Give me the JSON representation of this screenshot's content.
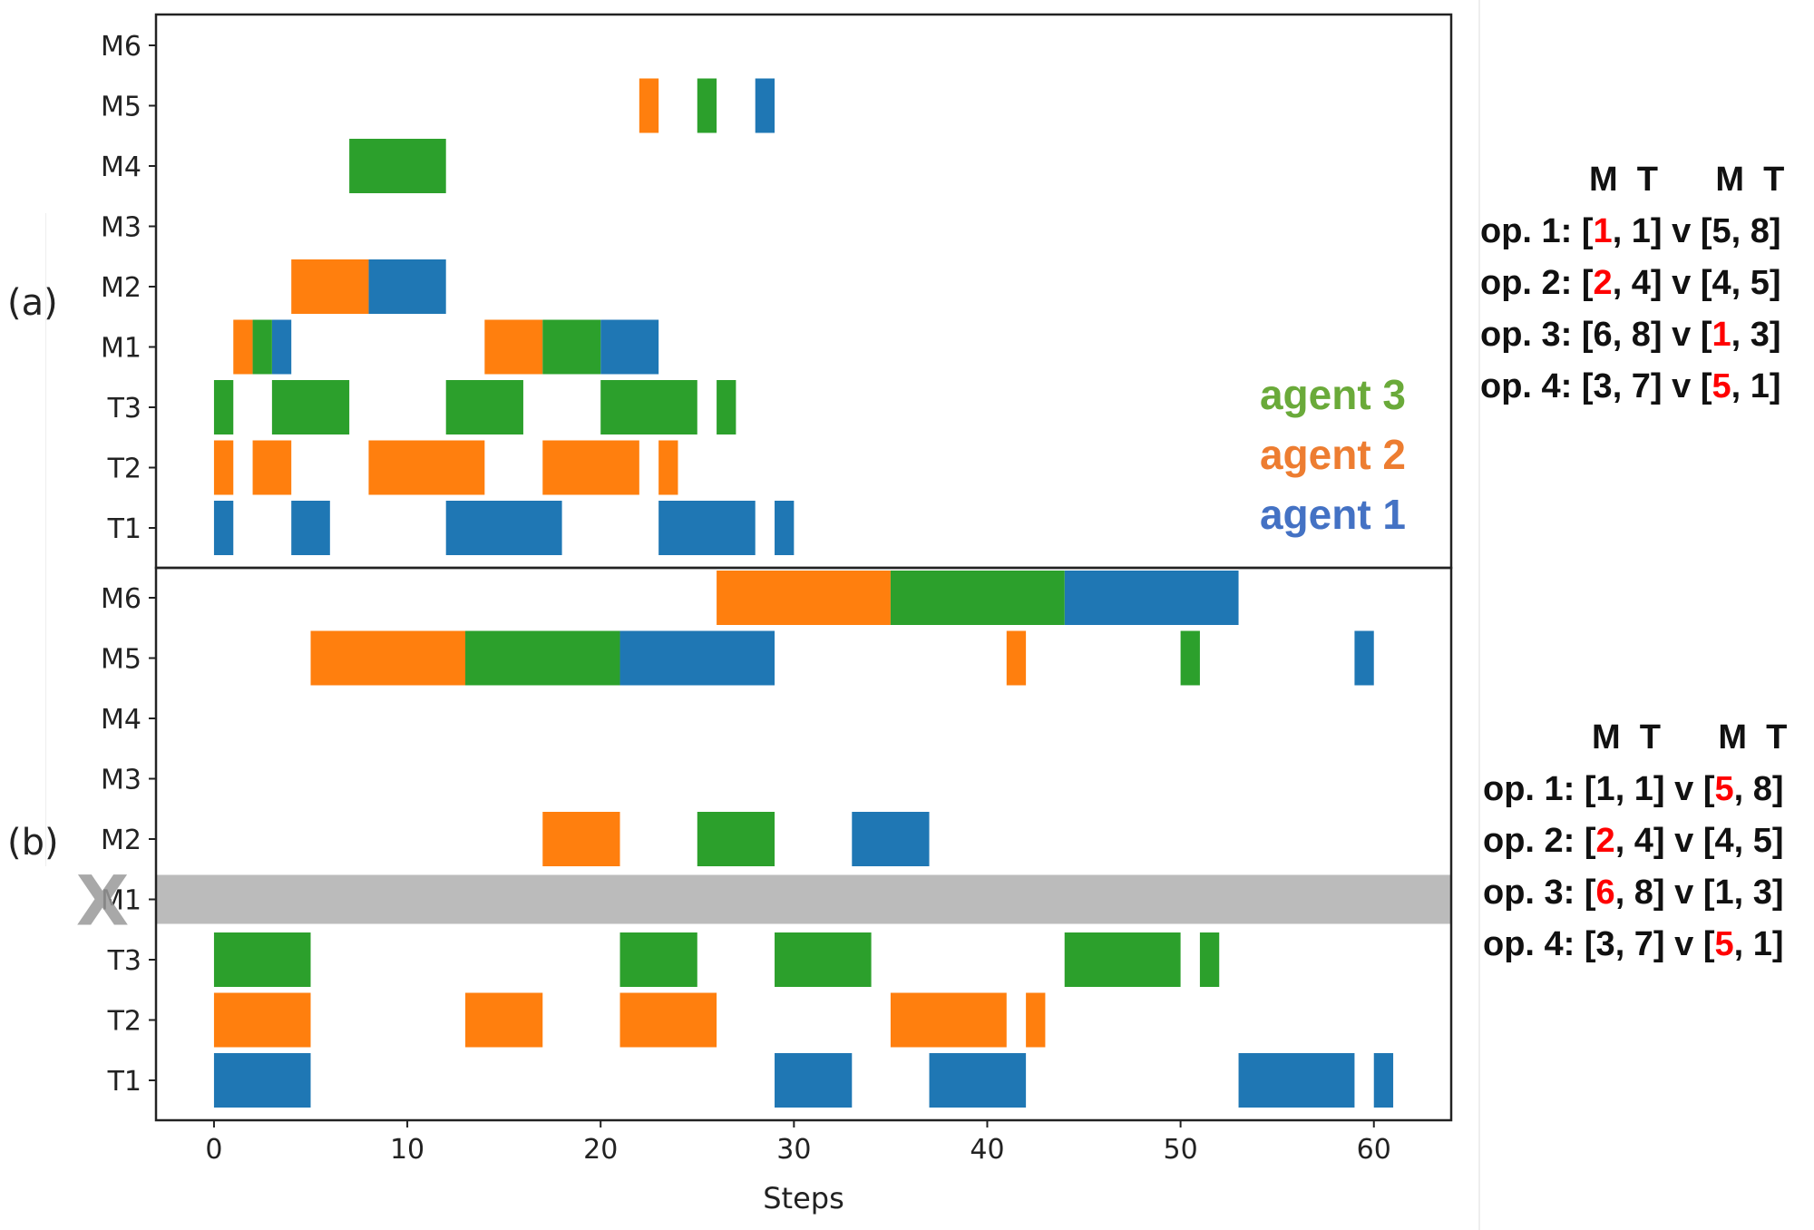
{
  "chart_data": [
    {
      "panel_label": "(a)",
      "type": "gantt",
      "categories": [
        "T1",
        "T2",
        "T3",
        "M1",
        "M2",
        "M3",
        "M4",
        "M5",
        "M6"
      ],
      "series": [
        {
          "name": "agent 1",
          "color": "#1f77b4",
          "bars": [
            {
              "row": "T1",
              "start": 0,
              "end": 1
            },
            {
              "row": "T1",
              "start": 4,
              "end": 6
            },
            {
              "row": "T1",
              "start": 12,
              "end": 18
            },
            {
              "row": "T1",
              "start": 23,
              "end": 28
            },
            {
              "row": "T1",
              "start": 29,
              "end": 30
            },
            {
              "row": "M1",
              "start": 3,
              "end": 4
            },
            {
              "row": "M1",
              "start": 20,
              "end": 23
            },
            {
              "row": "M2",
              "start": 8,
              "end": 12
            },
            {
              "row": "M5",
              "start": 28,
              "end": 29
            }
          ]
        },
        {
          "name": "agent 2",
          "color": "#ff7f0e",
          "bars": [
            {
              "row": "T2",
              "start": 0,
              "end": 1
            },
            {
              "row": "T2",
              "start": 2,
              "end": 4
            },
            {
              "row": "T2",
              "start": 8,
              "end": 14
            },
            {
              "row": "T2",
              "start": 17,
              "end": 22
            },
            {
              "row": "T2",
              "start": 23,
              "end": 24
            },
            {
              "row": "M1",
              "start": 1,
              "end": 2
            },
            {
              "row": "M1",
              "start": 14,
              "end": 17
            },
            {
              "row": "M2",
              "start": 4,
              "end": 8
            },
            {
              "row": "M5",
              "start": 22,
              "end": 23
            }
          ]
        },
        {
          "name": "agent 3",
          "color": "#2ca02c",
          "bars": [
            {
              "row": "T3",
              "start": 0,
              "end": 1
            },
            {
              "row": "T3",
              "start": 3,
              "end": 7
            },
            {
              "row": "T3",
              "start": 12,
              "end": 16
            },
            {
              "row": "T3",
              "start": 20,
              "end": 25
            },
            {
              "row": "T3",
              "start": 26,
              "end": 27
            },
            {
              "row": "M1",
              "start": 2,
              "end": 3
            },
            {
              "row": "M1",
              "start": 17,
              "end": 20
            },
            {
              "row": "M4",
              "start": 7,
              "end": 12
            },
            {
              "row": "M5",
              "start": 25,
              "end": 26
            }
          ]
        }
      ],
      "legend": [
        {
          "label": "agent 3",
          "color": "#6aaa3a"
        },
        {
          "label": "agent 2",
          "color": "#ed7d31"
        },
        {
          "label": "agent 1",
          "color": "#4472c4"
        }
      ],
      "legend_position": "bottom-right",
      "xlim": [
        -3,
        64
      ]
    },
    {
      "panel_label": "(b)",
      "type": "gantt",
      "categories": [
        "T1",
        "T2",
        "T3",
        "M1",
        "M2",
        "M3",
        "M4",
        "M5",
        "M6"
      ],
      "unavailable_row": "M1",
      "unavailable_marker": "X",
      "series": [
        {
          "name": "agent 1",
          "color": "#1f77b4",
          "bars": [
            {
              "row": "T1",
              "start": 0,
              "end": 5
            },
            {
              "row": "T1",
              "start": 29,
              "end": 33
            },
            {
              "row": "T1",
              "start": 37,
              "end": 42
            },
            {
              "row": "T1",
              "start": 53,
              "end": 59
            },
            {
              "row": "T1",
              "start": 60,
              "end": 61
            },
            {
              "row": "M2",
              "start": 33,
              "end": 37
            },
            {
              "row": "M5",
              "start": 21,
              "end": 29
            },
            {
              "row": "M5",
              "start": 59,
              "end": 60
            },
            {
              "row": "M6",
              "start": 44,
              "end": 53
            }
          ]
        },
        {
          "name": "agent 2",
          "color": "#ff7f0e",
          "bars": [
            {
              "row": "T2",
              "start": 0,
              "end": 5
            },
            {
              "row": "T2",
              "start": 13,
              "end": 17
            },
            {
              "row": "T2",
              "start": 21,
              "end": 26
            },
            {
              "row": "T2",
              "start": 35,
              "end": 41
            },
            {
              "row": "T2",
              "start": 42,
              "end": 43
            },
            {
              "row": "M2",
              "start": 17,
              "end": 21
            },
            {
              "row": "M5",
              "start": 5,
              "end": 13
            },
            {
              "row": "M5",
              "start": 41,
              "end": 42
            },
            {
              "row": "M6",
              "start": 26,
              "end": 35
            }
          ]
        },
        {
          "name": "agent 3",
          "color": "#2ca02c",
          "bars": [
            {
              "row": "T3",
              "start": 0,
              "end": 5
            },
            {
              "row": "T3",
              "start": 21,
              "end": 25
            },
            {
              "row": "T3",
              "start": 29,
              "end": 34
            },
            {
              "row": "T3",
              "start": 44,
              "end": 50
            },
            {
              "row": "T3",
              "start": 51,
              "end": 52
            },
            {
              "row": "M2",
              "start": 25,
              "end": 29
            },
            {
              "row": "M5",
              "start": 13,
              "end": 21
            },
            {
              "row": "M5",
              "start": 50,
              "end": 51
            },
            {
              "row": "M6",
              "start": 35,
              "end": 44
            }
          ]
        }
      ],
      "xlabel": "Steps",
      "xticks": [
        0,
        10,
        20,
        30,
        40,
        50,
        60
      ],
      "xlim": [
        -3,
        64
      ]
    }
  ],
  "ops_panels": [
    {
      "header": "M  T      M  T",
      "rows": [
        {
          "prefix": "op. 1: [",
          "a": "1",
          "b": ", 1] v [",
          "c": "5",
          "d": ", 8]",
          "red": "a"
        },
        {
          "prefix": "op. 2: [",
          "a": "2",
          "b": ", 4] v [",
          "c": "4",
          "d": ", 5]",
          "red": "a"
        },
        {
          "prefix": "op. 3: [",
          "a": "6",
          "b": ", 8] v [",
          "c": "1",
          "d": ", 3]",
          "red": "c"
        },
        {
          "prefix": "op. 4: [",
          "a": "3",
          "b": ", 7] v [",
          "c": "5",
          "d": ", 1]",
          "red": "c"
        }
      ]
    },
    {
      "header": "M  T      M  T",
      "rows": [
        {
          "prefix": "op. 1: [",
          "a": "1",
          "b": ", 1] v [",
          "c": "5",
          "d": ", 8]",
          "red": "c"
        },
        {
          "prefix": "op. 2: [",
          "a": "2",
          "b": ", 4] v [",
          "c": "4",
          "d": ", 5]",
          "red": "a"
        },
        {
          "prefix": "op. 3: [",
          "a": "6",
          "b": ", 8] v [",
          "c": "1",
          "d": ", 3]",
          "red": "a"
        },
        {
          "prefix": "op. 4: [",
          "a": "3",
          "b": ", 7] v [",
          "c": "5",
          "d": ", 1]",
          "red": "c"
        }
      ]
    }
  ],
  "colors": {
    "axis": "#222222",
    "unavailable_band": "#bbbbbb",
    "unavailable_marker": "#999999",
    "highlight": "#ff0000"
  }
}
